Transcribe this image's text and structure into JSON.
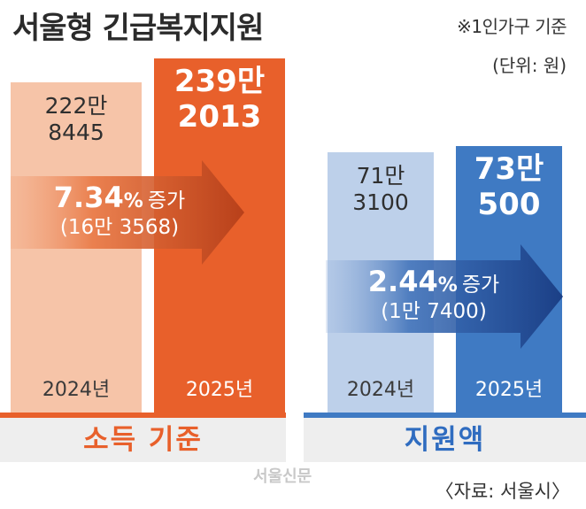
{
  "title": "서울형 긴급복지지원",
  "note": "※1인가구 기준",
  "unit": "(단위: 원)",
  "watermark": "서울신문",
  "source": "〈자료: 서울시〉",
  "colors": {
    "income_prev": "#f6c4a8",
    "income_curr": "#e8602b",
    "support_prev": "#bdd0ea",
    "support_curr": "#3f7ac3",
    "income_label": "#e8602b",
    "support_label": "#2f6cc0"
  },
  "chart_data": [
    {
      "type": "bar",
      "title": "소득 기준",
      "categories": [
        "2024년",
        "2025년"
      ],
      "values": [
        2228445,
        2392013
      ],
      "value_labels": [
        [
          "222만",
          "8445"
        ],
        [
          "239만",
          "2013"
        ]
      ],
      "ylim": [
        0,
        2450000
      ],
      "change": {
        "percent": "7.34",
        "pct_sign": "%",
        "word": "증가",
        "amount_label": "(16만 3568)"
      }
    },
    {
      "type": "bar",
      "title": "지원액",
      "categories": [
        "2024년",
        "2025년"
      ],
      "values": [
        713100,
        730500
      ],
      "value_labels": [
        [
          "71만",
          "3100"
        ],
        [
          "73만",
          "500"
        ]
      ],
      "ylim": [
        0,
        760000
      ],
      "change": {
        "percent": "2.44",
        "pct_sign": "%",
        "word": "증가",
        "amount_label": "(1만 7400)"
      }
    }
  ]
}
